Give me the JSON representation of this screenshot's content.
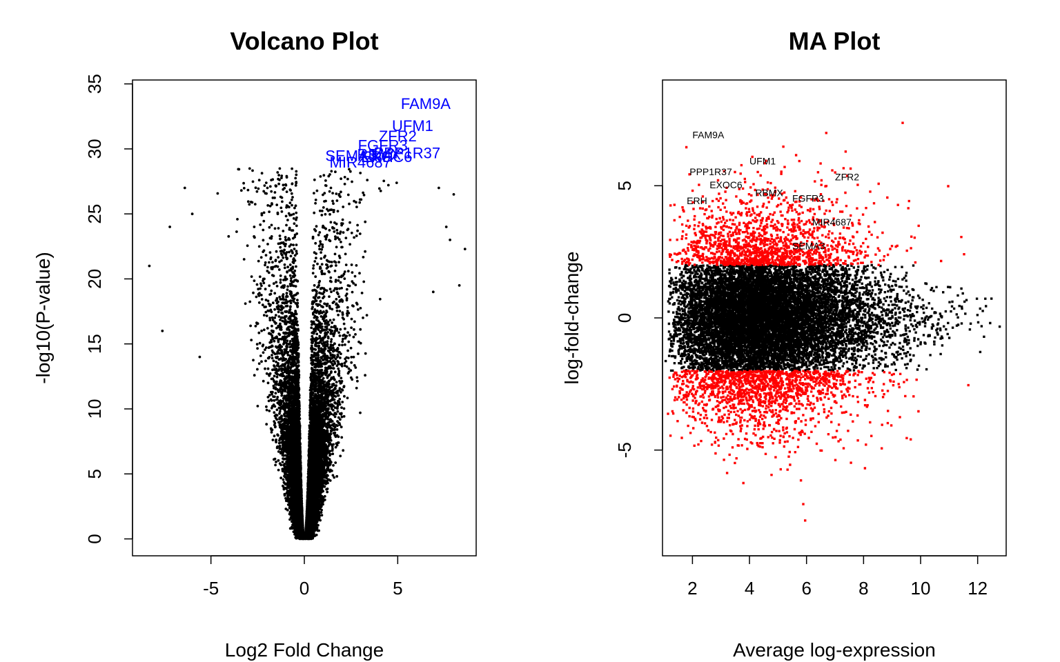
{
  "chart_data": [
    {
      "type": "scatter",
      "title": "Volcano Plot",
      "xlabel": "Log2 Fold Change",
      "ylabel": "-log10(P-value)",
      "xlim": [
        -9.2,
        9.2
      ],
      "ylim": [
        -1.3,
        35.3
      ],
      "x_ticks": [
        -5,
        0,
        5
      ],
      "y_ticks": [
        0,
        5,
        10,
        15,
        20,
        25,
        30,
        35
      ],
      "grid": false,
      "label_color": "#0000ff",
      "point_color": "#000000",
      "n_points": 14000,
      "highlighted": [
        {
          "label": "FAM9A",
          "x": 6.5,
          "y": 33.5
        },
        {
          "label": "UFM1",
          "x": 5.8,
          "y": 31.8
        },
        {
          "label": "ZFR2",
          "x": 5.0,
          "y": 31.0
        },
        {
          "label": "FGFR3",
          "x": 4.2,
          "y": 30.3
        },
        {
          "label": "SEMA3",
          "x": 2.5,
          "y": 29.5
        },
        {
          "label": "RBMX",
          "x": 4.0,
          "y": 29.6
        },
        {
          "label": "EXOC6",
          "x": 4.4,
          "y": 29.4
        },
        {
          "label": "PPP1R37",
          "x": 5.5,
          "y": 29.7
        },
        {
          "label": "ERH",
          "x": 3.9,
          "y": 29.4
        },
        {
          "label": "MIR4687",
          "x": 3.0,
          "y": 29.0
        }
      ]
    },
    {
      "type": "scatter",
      "title": "MA Plot",
      "xlabel": "Average log-expression",
      "ylabel": "log-fold-change",
      "xlim": [
        0.95,
        13.0
      ],
      "ylim": [
        -9.0,
        9.0
      ],
      "x_ticks": [
        2,
        4,
        6,
        8,
        10,
        12
      ],
      "y_ticks": [
        -5,
        0,
        5
      ],
      "grid": false,
      "significant_color": "#ff0000",
      "nonsignificant_color": "#000000",
      "significance_threshold_logfc": 2,
      "n_points": 14000,
      "highlighted": [
        {
          "label": "FAM9A",
          "x": 2.0,
          "y": 6.8
        },
        {
          "label": "UFM1",
          "x": 4.0,
          "y": 5.8
        },
        {
          "label": "PPP1R37",
          "x": 1.9,
          "y": 5.4
        },
        {
          "label": "ZFR2",
          "x": 7.0,
          "y": 5.2
        },
        {
          "label": "EXOC6",
          "x": 2.6,
          "y": 4.9
        },
        {
          "label": "RBMX",
          "x": 4.2,
          "y": 4.6
        },
        {
          "label": "FGFR3",
          "x": 5.5,
          "y": 4.4
        },
        {
          "label": "ERH",
          "x": 1.8,
          "y": 4.3
        },
        {
          "label": "MIR4687",
          "x": 6.2,
          "y": 3.5
        },
        {
          "label": "SEMA3",
          "x": 5.5,
          "y": 2.6
        }
      ]
    }
  ]
}
